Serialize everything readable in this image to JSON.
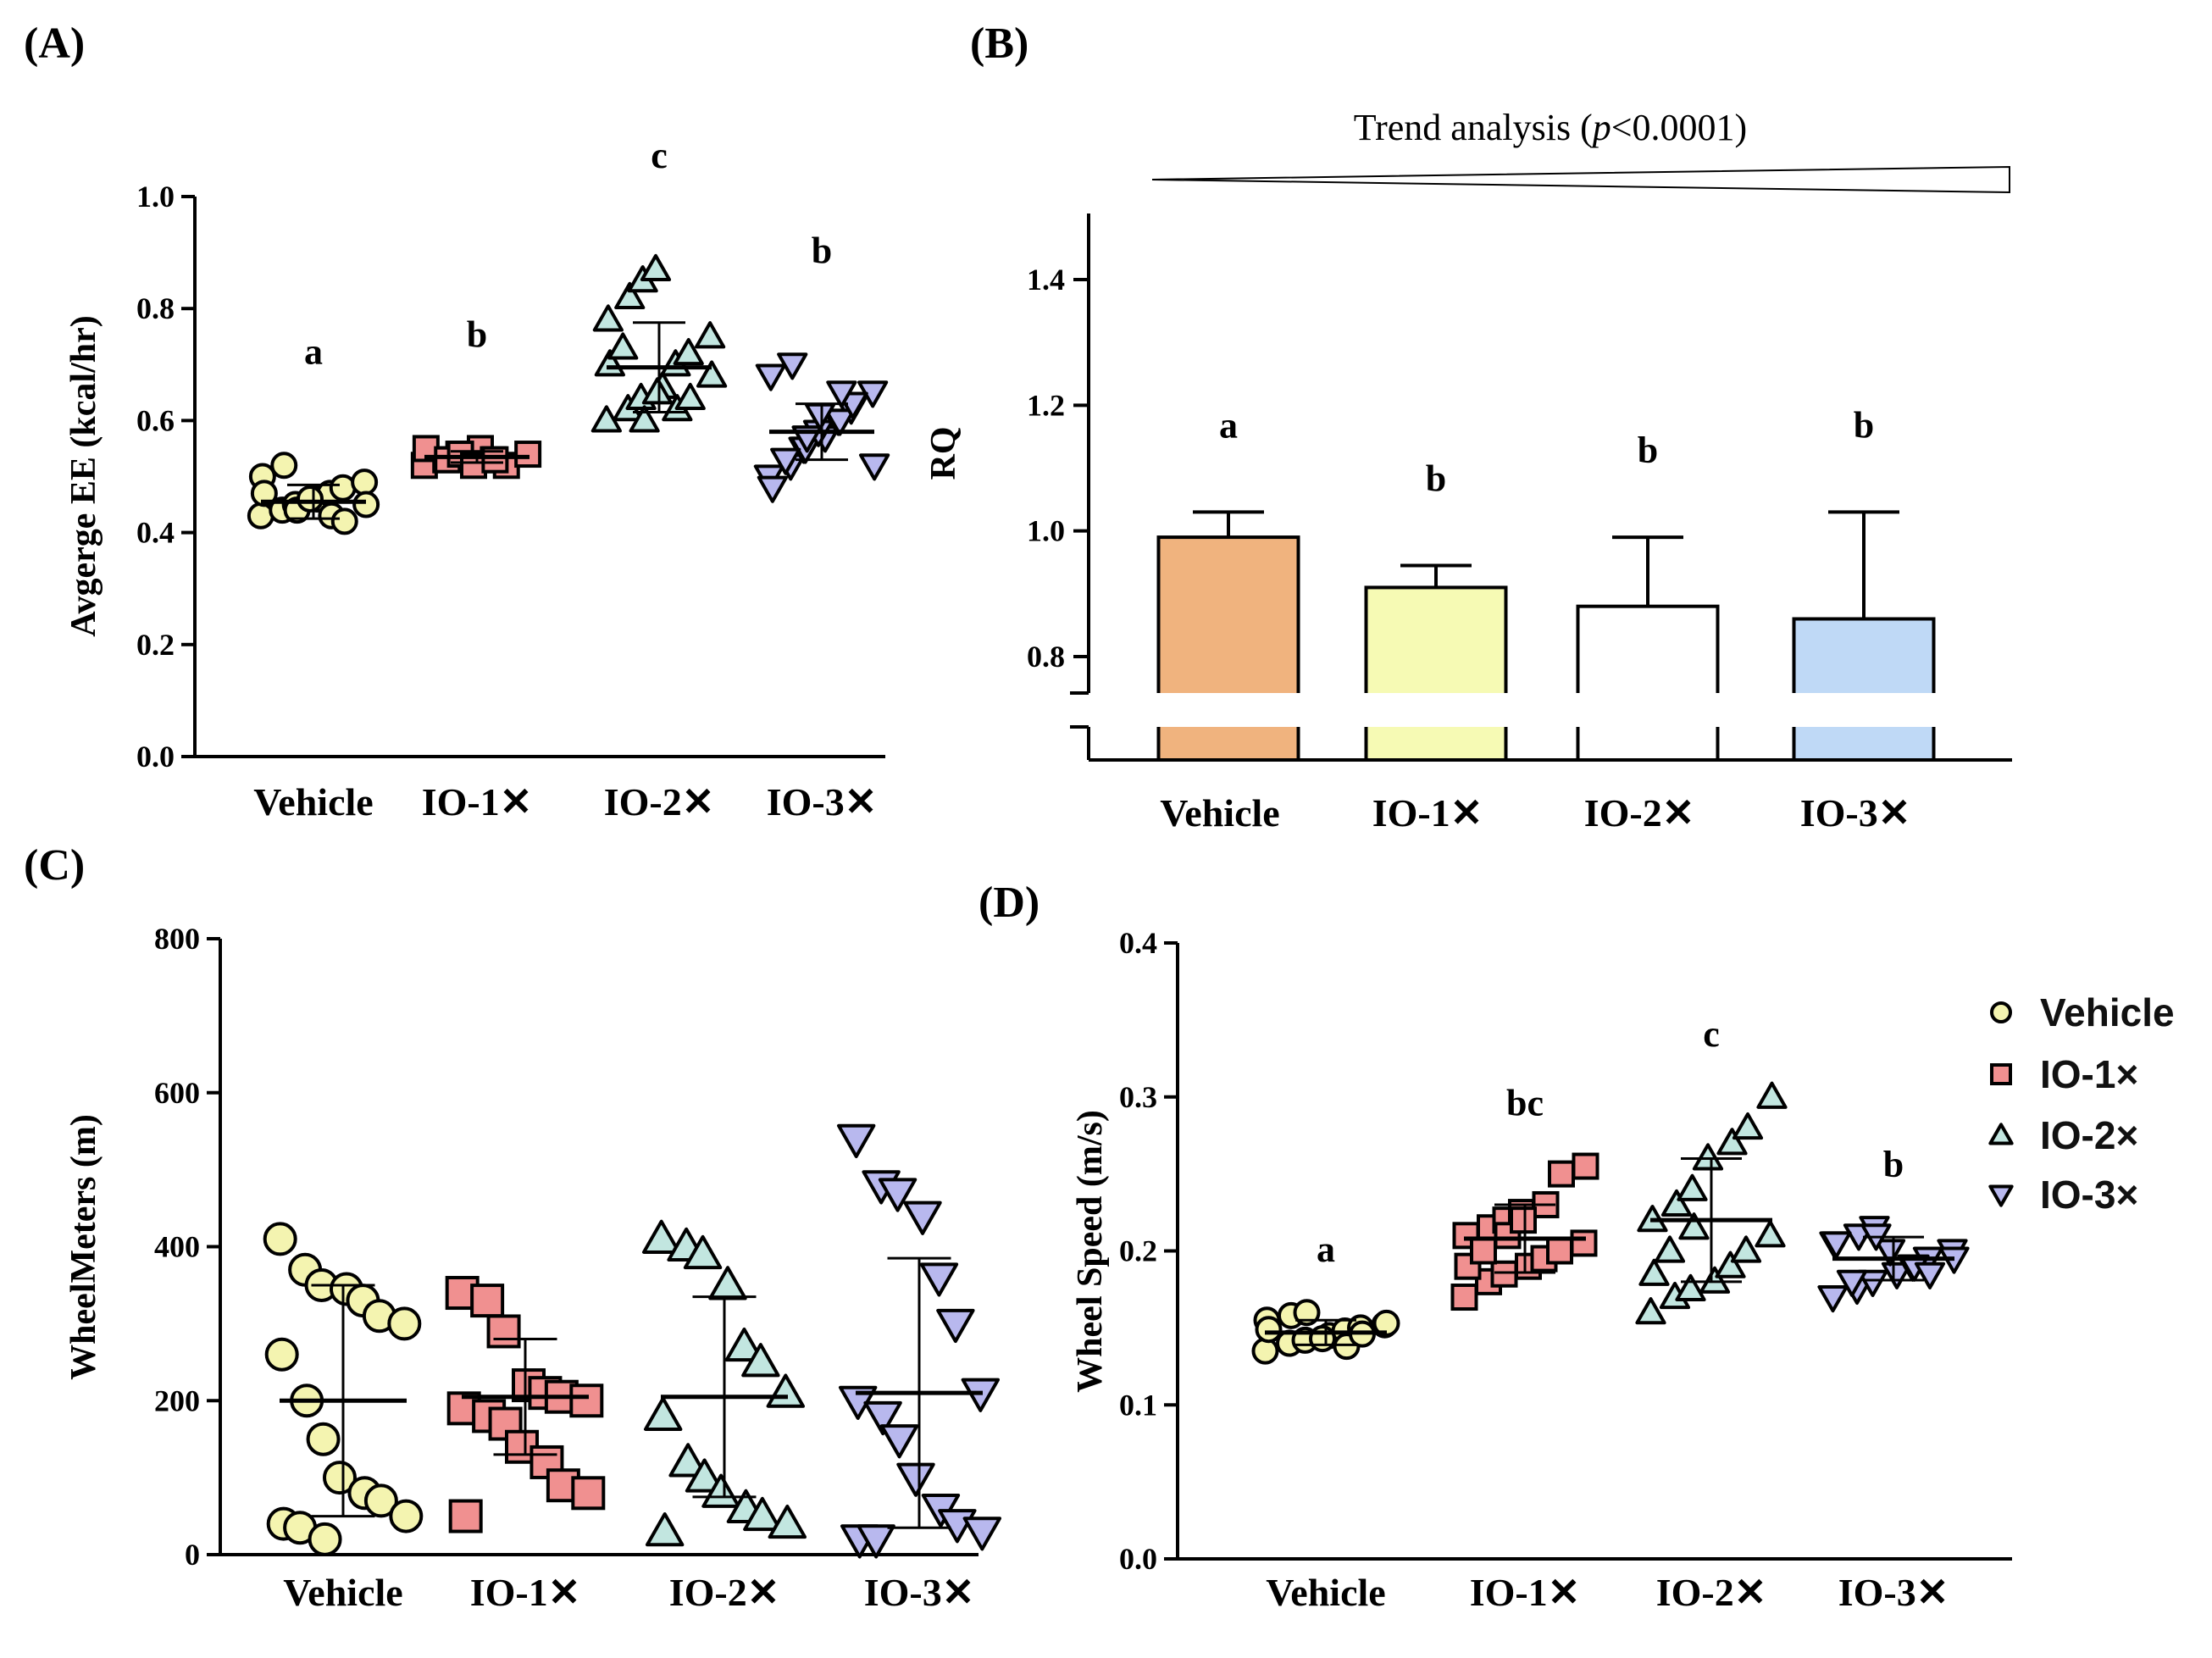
{
  "figure_title": "",
  "colors": {
    "vehicle": "#F4F4B0",
    "io1": "#F09090",
    "io2": "#C2E6E0",
    "io3": "#B8B8EE",
    "bar_vehicle": "#F0B37E",
    "bar_io1": "#F6FAB4",
    "bar_io2": "#FFFFFF",
    "bar_io3": "#BFD9F6"
  },
  "legend": {
    "items": [
      {
        "label": "Vehicle",
        "marker": "circle-icon",
        "color": "#F4F4B0"
      },
      {
        "label": "IO-1×",
        "marker": "square-icon",
        "color": "#F09090"
      },
      {
        "label": "IO-2×",
        "marker": "triangle-up-icon",
        "color": "#C2E6E0"
      },
      {
        "label": "IO-3×",
        "marker": "triangle-down-icon",
        "color": "#B8B8EE"
      }
    ]
  },
  "chart_data": [
    {
      "id": "A",
      "panel_label": "(A)",
      "type": "scatter",
      "ylabel": "Avgerge EE (kcal/hr)",
      "ylim": [
        0,
        1.0
      ],
      "yticks": [
        "0.0",
        "0.2",
        "0.4",
        "0.6",
        "0.8",
        "1.0"
      ],
      "categories": [
        "Vehicle",
        "IO-1✕",
        "IO-2✕",
        "IO-3✕"
      ],
      "markers": [
        "circle",
        "square",
        "triangle-up",
        "triangle-down"
      ],
      "significance": [
        "a",
        "b",
        "c",
        "b"
      ],
      "means": [
        0.455,
        0.535,
        0.695,
        0.58
      ],
      "sd": [
        0.03,
        0.01,
        0.08,
        0.05
      ],
      "points": [
        [
          0.43,
          0.44,
          0.45,
          0.46,
          0.47,
          0.48,
          0.49,
          0.5,
          0.52,
          0.44,
          0.46,
          0.43,
          0.42,
          0.45,
          0.47
        ],
        [
          0.52,
          0.53,
          0.54,
          0.55,
          0.53,
          0.52,
          0.54,
          0.55,
          0.53,
          0.54,
          0.52,
          0.53
        ],
        [
          0.6,
          0.62,
          0.64,
          0.66,
          0.7,
          0.72,
          0.75,
          0.78,
          0.82,
          0.85,
          0.87,
          0.62,
          0.64,
          0.68,
          0.7,
          0.73,
          0.6,
          0.65
        ],
        [
          0.5,
          0.52,
          0.55,
          0.57,
          0.6,
          0.62,
          0.65,
          0.68,
          0.7,
          0.55,
          0.58,
          0.6,
          0.63,
          0.52,
          0.48,
          0.53,
          0.57,
          0.61,
          0.65
        ]
      ]
    },
    {
      "id": "B",
      "panel_label": "(B)",
      "type": "bar",
      "ylabel": "RQ",
      "trend_text": "Trend analysis (",
      "trend_p": "p",
      "trend_rest": "<0.0001)",
      "yticks": [
        "0.8",
        "1.0",
        "1.2",
        "1.4"
      ],
      "ylim": [
        0.75,
        1.52
      ],
      "categories": [
        "Vehicle",
        "IO-1✕",
        "IO-2✕",
        "IO-3✕"
      ],
      "values": [
        0.99,
        0.91,
        0.88,
        0.86
      ],
      "errors": [
        0.04,
        0.035,
        0.11,
        0.17
      ],
      "significance": [
        "a",
        "b",
        "b",
        "b"
      ]
    },
    {
      "id": "C",
      "panel_label": "(C)",
      "type": "scatter",
      "ylabel": "WheelMeters (m)",
      "ylim": [
        0,
        800
      ],
      "yticks": [
        "0",
        "200",
        "400",
        "600",
        "800"
      ],
      "categories": [
        "Vehicle",
        "IO-1✕",
        "IO-2✕",
        "IO-3✕"
      ],
      "markers": [
        "circle",
        "square",
        "triangle-up",
        "triangle-down"
      ],
      "significance": [
        "",
        "",
        "",
        ""
      ],
      "means": [
        200,
        205,
        205,
        210
      ],
      "sd": [
        150,
        75,
        130,
        175
      ],
      "points": [
        [
          410,
          370,
          350,
          345,
          330,
          310,
          300,
          260,
          200,
          150,
          100,
          80,
          70,
          50,
          40,
          35,
          20
        ],
        [
          340,
          330,
          290,
          220,
          210,
          205,
          200,
          190,
          180,
          170,
          140,
          120,
          90,
          80,
          50
        ],
        [
          410,
          400,
          390,
          350,
          270,
          250,
          210,
          180,
          120,
          100,
          80,
          60,
          50,
          40,
          30
        ],
        [
          540,
          480,
          470,
          440,
          360,
          300,
          210,
          200,
          180,
          150,
          100,
          60,
          40,
          30,
          20,
          20
        ]
      ]
    },
    {
      "id": "D",
      "panel_label": "(D)",
      "type": "scatter",
      "ylabel": "Wheel Speed (m/s)",
      "ylim": [
        0,
        0.4
      ],
      "yticks": [
        "0.0",
        "0.1",
        "0.2",
        "0.3",
        "0.4"
      ],
      "categories": [
        "Vehicle",
        "IO-1✕",
        "IO-2✕",
        "IO-3✕"
      ],
      "markers": [
        "circle",
        "square",
        "triangle-up",
        "triangle-down"
      ],
      "significance": [
        "a",
        "bc",
        "c",
        "b"
      ],
      "means": [
        0.147,
        0.208,
        0.22,
        0.195
      ],
      "sd": [
        0.008,
        0.022,
        0.04,
        0.014
      ],
      "points": [
        [
          0.135,
          0.14,
          0.142,
          0.145,
          0.148,
          0.15,
          0.152,
          0.155,
          0.158,
          0.16,
          0.143,
          0.138,
          0.146,
          0.153,
          0.149
        ],
        [
          0.17,
          0.18,
          0.185,
          0.19,
          0.195,
          0.2,
          0.205,
          0.21,
          0.215,
          0.22,
          0.225,
          0.23,
          0.25,
          0.255,
          0.19,
          0.2,
          0.21,
          0.22
        ],
        [
          0.16,
          0.17,
          0.175,
          0.18,
          0.19,
          0.2,
          0.21,
          0.22,
          0.23,
          0.24,
          0.26,
          0.27,
          0.28,
          0.3,
          0.185,
          0.2,
          0.215
        ],
        [
          0.17,
          0.175,
          0.18,
          0.185,
          0.19,
          0.195,
          0.2,
          0.205,
          0.21,
          0.215,
          0.2,
          0.19,
          0.185,
          0.195,
          0.205,
          0.18,
          0.21
        ]
      ]
    }
  ]
}
